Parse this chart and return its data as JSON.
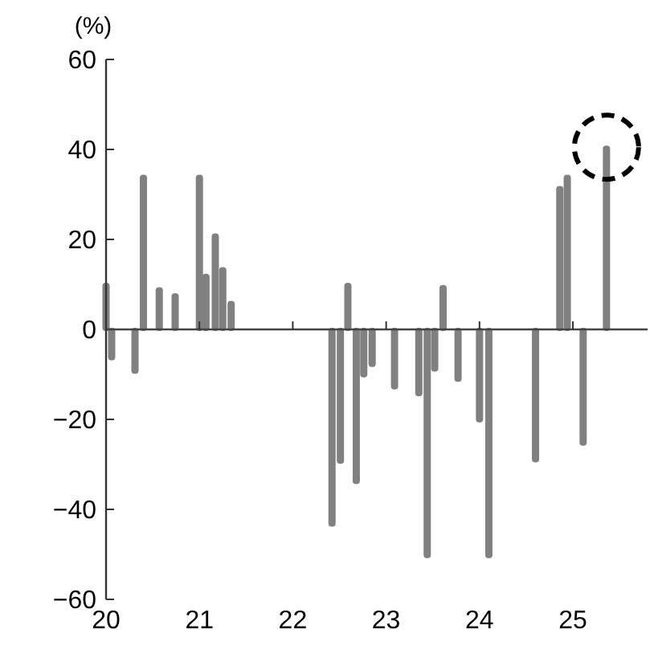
{
  "chart_data": {
    "type": "bar",
    "ylabel": "(%)",
    "x": [
      20.0,
      20.06,
      20.31,
      20.4,
      20.57,
      20.74,
      21.0,
      21.07,
      21.17,
      21.25,
      21.34,
      22.42,
      22.51,
      22.59,
      22.68,
      22.76,
      22.85,
      23.09,
      23.35,
      23.44,
      23.52,
      23.61,
      23.77,
      24.0,
      24.1,
      24.6,
      24.86,
      24.94,
      25.11,
      25.36
    ],
    "values": [
      10,
      -6.5,
      -9.5,
      34,
      9,
      7.7,
      34,
      12,
      21,
      13.5,
      6,
      -43.5,
      -29.5,
      10,
      -34,
      -10.3,
      -8,
      -13,
      -14.5,
      -50.5,
      -9,
      9.5,
      -11.3,
      -20.3,
      -50.5,
      -29.2,
      31.5,
      34,
      -25.5,
      40.5
    ],
    "color": "#808080",
    "xlim": [
      20,
      25.8
    ],
    "xticks": [
      20,
      21,
      22,
      23,
      24,
      25
    ],
    "ylim": [
      -60,
      60
    ],
    "yticks": [
      -60,
      -40,
      -20,
      0,
      20,
      40,
      60
    ]
  }
}
